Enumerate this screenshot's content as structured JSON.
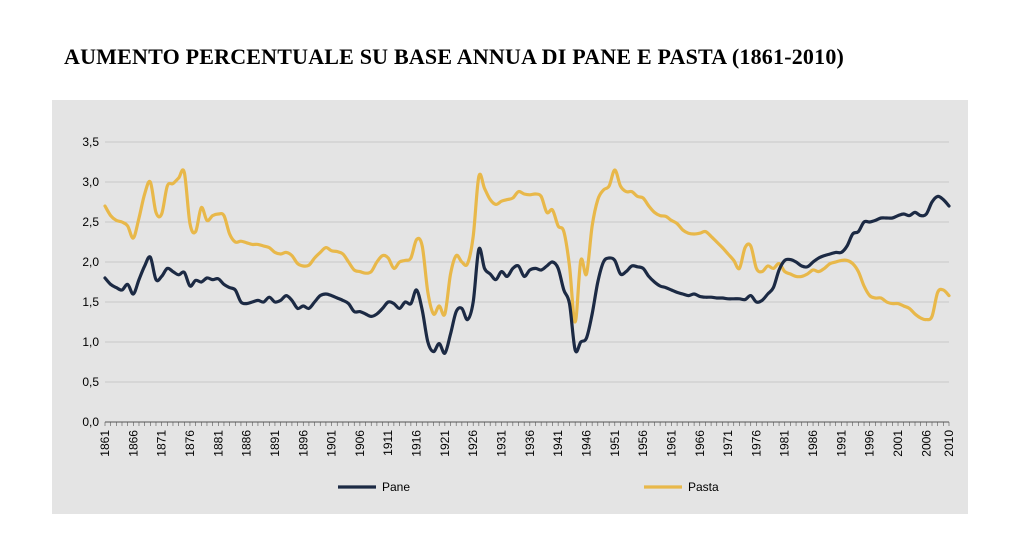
{
  "title": "AUMENTO PERCENTUALE SU BASE ANNUA DI PANE E PASTA (1861-2010)",
  "colors": {
    "pane": "#1c2a44",
    "pasta": "#e8b84a",
    "grid": "#c8c8c8",
    "panel": "#e4e4e4"
  },
  "chart_data": {
    "type": "line",
    "title": "AUMENTO PERCENTUALE SU BASE ANNUA DI PANE E PASTA (1861-2010)",
    "xlabel": "",
    "ylabel": "",
    "xlim": [
      1861,
      2010
    ],
    "ylim": [
      0,
      3.5
    ],
    "grid": true,
    "legend_position": "bottom",
    "x_ticks": [
      "1861",
      "1866",
      "1871",
      "1876",
      "1881",
      "1886",
      "1891",
      "1896",
      "1901",
      "1906",
      "1911",
      "1916",
      "1921",
      "1926",
      "1931",
      "1936",
      "1941",
      "1946",
      "1951",
      "1956",
      "1961",
      "1966",
      "1971",
      "1976",
      "1981",
      "1986",
      "1991",
      "1996",
      "2001",
      "2006",
      "2010"
    ],
    "y_ticks": [
      "0,0",
      "0,5",
      "1,0",
      "1,5",
      "2,0",
      "2,5",
      "3,0",
      "3,5"
    ],
    "series": [
      {
        "name": "Pane",
        "color": "#1c2a44",
        "points": [
          [
            1861,
            1.8
          ],
          [
            1862,
            1.72
          ],
          [
            1863,
            1.68
          ],
          [
            1864,
            1.65
          ],
          [
            1865,
            1.72
          ],
          [
            1866,
            1.6
          ],
          [
            1867,
            1.78
          ],
          [
            1868,
            1.95
          ],
          [
            1869,
            2.06
          ],
          [
            1870,
            1.78
          ],
          [
            1871,
            1.82
          ],
          [
            1872,
            1.92
          ],
          [
            1873,
            1.88
          ],
          [
            1874,
            1.84
          ],
          [
            1875,
            1.87
          ],
          [
            1876,
            1.7
          ],
          [
            1877,
            1.77
          ],
          [
            1878,
            1.75
          ],
          [
            1879,
            1.8
          ],
          [
            1880,
            1.78
          ],
          [
            1881,
            1.79
          ],
          [
            1882,
            1.72
          ],
          [
            1883,
            1.68
          ],
          [
            1884,
            1.65
          ],
          [
            1885,
            1.5
          ],
          [
            1886,
            1.48
          ],
          [
            1887,
            1.5
          ],
          [
            1888,
            1.52
          ],
          [
            1889,
            1.5
          ],
          [
            1890,
            1.56
          ],
          [
            1891,
            1.5
          ],
          [
            1892,
            1.52
          ],
          [
            1893,
            1.58
          ],
          [
            1894,
            1.52
          ],
          [
            1895,
            1.42
          ],
          [
            1896,
            1.45
          ],
          [
            1897,
            1.42
          ],
          [
            1898,
            1.5
          ],
          [
            1899,
            1.58
          ],
          [
            1900,
            1.6
          ],
          [
            1901,
            1.58
          ],
          [
            1902,
            1.55
          ],
          [
            1903,
            1.52
          ],
          [
            1904,
            1.48
          ],
          [
            1905,
            1.38
          ],
          [
            1906,
            1.38
          ],
          [
            1907,
            1.35
          ],
          [
            1908,
            1.32
          ],
          [
            1909,
            1.35
          ],
          [
            1910,
            1.42
          ],
          [
            1911,
            1.5
          ],
          [
            1912,
            1.48
          ],
          [
            1913,
            1.42
          ],
          [
            1914,
            1.5
          ],
          [
            1915,
            1.48
          ],
          [
            1916,
            1.65
          ],
          [
            1917,
            1.4
          ],
          [
            1918,
            1.0
          ],
          [
            1919,
            0.88
          ],
          [
            1920,
            0.98
          ],
          [
            1921,
            0.86
          ],
          [
            1922,
            1.1
          ],
          [
            1923,
            1.38
          ],
          [
            1924,
            1.42
          ],
          [
            1925,
            1.28
          ],
          [
            1926,
            1.5
          ],
          [
            1927,
            2.16
          ],
          [
            1928,
            1.92
          ],
          [
            1929,
            1.85
          ],
          [
            1930,
            1.78
          ],
          [
            1931,
            1.88
          ],
          [
            1932,
            1.82
          ],
          [
            1933,
            1.92
          ],
          [
            1934,
            1.95
          ],
          [
            1935,
            1.82
          ],
          [
            1936,
            1.9
          ],
          [
            1937,
            1.92
          ],
          [
            1938,
            1.9
          ],
          [
            1939,
            1.95
          ],
          [
            1940,
            2.0
          ],
          [
            1941,
            1.92
          ],
          [
            1942,
            1.65
          ],
          [
            1943,
            1.48
          ],
          [
            1944,
            0.9
          ],
          [
            1945,
            1.0
          ],
          [
            1946,
            1.05
          ],
          [
            1947,
            1.35
          ],
          [
            1948,
            1.75
          ],
          [
            1949,
            2.0
          ],
          [
            1950,
            2.05
          ],
          [
            1951,
            2.02
          ],
          [
            1952,
            1.85
          ],
          [
            1953,
            1.88
          ],
          [
            1954,
            1.95
          ],
          [
            1955,
            1.94
          ],
          [
            1956,
            1.92
          ],
          [
            1957,
            1.82
          ],
          [
            1958,
            1.75
          ],
          [
            1959,
            1.7
          ],
          [
            1960,
            1.68
          ],
          [
            1961,
            1.65
          ],
          [
            1962,
            1.62
          ],
          [
            1963,
            1.6
          ],
          [
            1964,
            1.58
          ],
          [
            1965,
            1.6
          ],
          [
            1966,
            1.57
          ],
          [
            1967,
            1.56
          ],
          [
            1968,
            1.56
          ],
          [
            1969,
            1.55
          ],
          [
            1970,
            1.55
          ],
          [
            1971,
            1.54
          ],
          [
            1972,
            1.54
          ],
          [
            1973,
            1.54
          ],
          [
            1974,
            1.53
          ],
          [
            1975,
            1.58
          ],
          [
            1976,
            1.5
          ],
          [
            1977,
            1.52
          ],
          [
            1978,
            1.6
          ],
          [
            1979,
            1.68
          ],
          [
            1980,
            1.9
          ],
          [
            1981,
            2.02
          ],
          [
            1982,
            2.03
          ],
          [
            1983,
            2.0
          ],
          [
            1984,
            1.95
          ],
          [
            1985,
            1.94
          ],
          [
            1986,
            2.0
          ],
          [
            1987,
            2.05
          ],
          [
            1988,
            2.08
          ],
          [
            1989,
            2.1
          ],
          [
            1990,
            2.12
          ],
          [
            1991,
            2.12
          ],
          [
            1992,
            2.2
          ],
          [
            1993,
            2.35
          ],
          [
            1994,
            2.38
          ],
          [
            1995,
            2.5
          ],
          [
            1996,
            2.5
          ],
          [
            1997,
            2.52
          ],
          [
            1998,
            2.55
          ],
          [
            1999,
            2.55
          ],
          [
            2000,
            2.55
          ],
          [
            2001,
            2.58
          ],
          [
            2002,
            2.6
          ],
          [
            2003,
            2.58
          ],
          [
            2004,
            2.62
          ],
          [
            2005,
            2.58
          ],
          [
            2006,
            2.6
          ],
          [
            2007,
            2.75
          ],
          [
            2008,
            2.82
          ],
          [
            2009,
            2.78
          ],
          [
            2010,
            2.7
          ]
        ]
      },
      {
        "name": "Pasta",
        "color": "#e8b84a",
        "points": [
          [
            1861,
            2.7
          ],
          [
            1862,
            2.58
          ],
          [
            1863,
            2.52
          ],
          [
            1864,
            2.5
          ],
          [
            1865,
            2.45
          ],
          [
            1866,
            2.3
          ],
          [
            1867,
            2.55
          ],
          [
            1868,
            2.85
          ],
          [
            1869,
            3.0
          ],
          [
            1870,
            2.62
          ],
          [
            1871,
            2.6
          ],
          [
            1872,
            2.95
          ],
          [
            1873,
            2.98
          ],
          [
            1874,
            3.05
          ],
          [
            1875,
            3.12
          ],
          [
            1876,
            2.48
          ],
          [
            1877,
            2.38
          ],
          [
            1878,
            2.68
          ],
          [
            1879,
            2.52
          ],
          [
            1880,
            2.58
          ],
          [
            1881,
            2.6
          ],
          [
            1882,
            2.58
          ],
          [
            1883,
            2.35
          ],
          [
            1884,
            2.25
          ],
          [
            1885,
            2.26
          ],
          [
            1886,
            2.24
          ],
          [
            1887,
            2.22
          ],
          [
            1888,
            2.22
          ],
          [
            1889,
            2.2
          ],
          [
            1890,
            2.18
          ],
          [
            1891,
            2.12
          ],
          [
            1892,
            2.1
          ],
          [
            1893,
            2.12
          ],
          [
            1894,
            2.08
          ],
          [
            1895,
            1.98
          ],
          [
            1896,
            1.95
          ],
          [
            1897,
            1.96
          ],
          [
            1898,
            2.05
          ],
          [
            1899,
            2.12
          ],
          [
            1900,
            2.18
          ],
          [
            1901,
            2.14
          ],
          [
            1902,
            2.13
          ],
          [
            1903,
            2.1
          ],
          [
            1904,
            2.0
          ],
          [
            1905,
            1.9
          ],
          [
            1906,
            1.88
          ],
          [
            1907,
            1.86
          ],
          [
            1908,
            1.88
          ],
          [
            1909,
            2.0
          ],
          [
            1910,
            2.08
          ],
          [
            1911,
            2.05
          ],
          [
            1912,
            1.92
          ],
          [
            1913,
            2.0
          ],
          [
            1914,
            2.02
          ],
          [
            1915,
            2.05
          ],
          [
            1916,
            2.28
          ],
          [
            1917,
            2.2
          ],
          [
            1918,
            1.62
          ],
          [
            1919,
            1.35
          ],
          [
            1920,
            1.45
          ],
          [
            1921,
            1.35
          ],
          [
            1922,
            1.85
          ],
          [
            1923,
            2.08
          ],
          [
            1924,
            2.0
          ],
          [
            1925,
            1.98
          ],
          [
            1926,
            2.32
          ],
          [
            1927,
            3.07
          ],
          [
            1928,
            2.92
          ],
          [
            1929,
            2.78
          ],
          [
            1930,
            2.72
          ],
          [
            1931,
            2.76
          ],
          [
            1932,
            2.78
          ],
          [
            1933,
            2.8
          ],
          [
            1934,
            2.88
          ],
          [
            1935,
            2.85
          ],
          [
            1936,
            2.84
          ],
          [
            1937,
            2.85
          ],
          [
            1938,
            2.82
          ],
          [
            1939,
            2.62
          ],
          [
            1940,
            2.65
          ],
          [
            1941,
            2.45
          ],
          [
            1942,
            2.38
          ],
          [
            1943,
            1.95
          ],
          [
            1944,
            1.25
          ],
          [
            1945,
            2.02
          ],
          [
            1946,
            1.85
          ],
          [
            1947,
            2.45
          ],
          [
            1948,
            2.78
          ],
          [
            1949,
            2.9
          ],
          [
            1950,
            2.95
          ],
          [
            1951,
            3.15
          ],
          [
            1952,
            2.95
          ],
          [
            1953,
            2.88
          ],
          [
            1954,
            2.88
          ],
          [
            1955,
            2.82
          ],
          [
            1956,
            2.8
          ],
          [
            1957,
            2.7
          ],
          [
            1958,
            2.62
          ],
          [
            1959,
            2.58
          ],
          [
            1960,
            2.57
          ],
          [
            1961,
            2.52
          ],
          [
            1962,
            2.48
          ],
          [
            1963,
            2.4
          ],
          [
            1964,
            2.36
          ],
          [
            1965,
            2.35
          ],
          [
            1966,
            2.36
          ],
          [
            1967,
            2.38
          ],
          [
            1968,
            2.32
          ],
          [
            1969,
            2.25
          ],
          [
            1970,
            2.18
          ],
          [
            1971,
            2.1
          ],
          [
            1972,
            2.02
          ],
          [
            1973,
            1.92
          ],
          [
            1974,
            2.18
          ],
          [
            1975,
            2.2
          ],
          [
            1976,
            1.92
          ],
          [
            1977,
            1.88
          ],
          [
            1978,
            1.95
          ],
          [
            1979,
            1.92
          ],
          [
            1980,
            1.98
          ],
          [
            1981,
            1.88
          ],
          [
            1982,
            1.85
          ],
          [
            1983,
            1.82
          ],
          [
            1984,
            1.82
          ],
          [
            1985,
            1.85
          ],
          [
            1986,
            1.9
          ],
          [
            1987,
            1.88
          ],
          [
            1988,
            1.92
          ],
          [
            1989,
            1.98
          ],
          [
            1990,
            2.0
          ],
          [
            1991,
            2.02
          ],
          [
            1992,
            2.02
          ],
          [
            1993,
            1.98
          ],
          [
            1994,
            1.88
          ],
          [
            1995,
            1.7
          ],
          [
            1996,
            1.58
          ],
          [
            1997,
            1.55
          ],
          [
            1998,
            1.55
          ],
          [
            1999,
            1.5
          ],
          [
            2000,
            1.48
          ],
          [
            2001,
            1.48
          ],
          [
            2002,
            1.45
          ],
          [
            2003,
            1.42
          ],
          [
            2004,
            1.35
          ],
          [
            2005,
            1.3
          ],
          [
            2006,
            1.28
          ],
          [
            2007,
            1.32
          ],
          [
            2008,
            1.62
          ],
          [
            2009,
            1.65
          ],
          [
            2010,
            1.58
          ]
        ]
      }
    ]
  }
}
